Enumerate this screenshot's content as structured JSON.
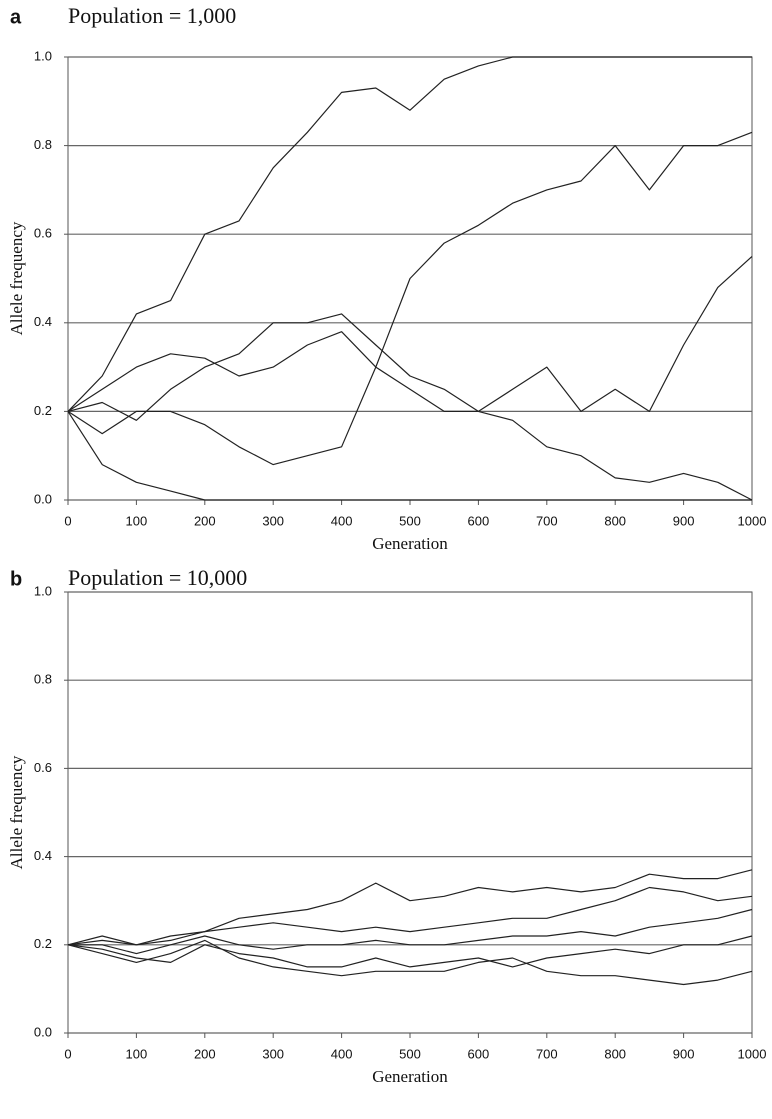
{
  "chart_data": [
    {
      "type": "line",
      "panel_label": "a",
      "title": "Population = 1,000",
      "x_label": "Generation",
      "y_label": "Allele frequency",
      "x": [
        0,
        50,
        100,
        150,
        200,
        250,
        300,
        350,
        400,
        450,
        500,
        550,
        600,
        650,
        700,
        750,
        800,
        850,
        900,
        950,
        1000
      ],
      "xlim": [
        0,
        1000
      ],
      "xticks": [
        0,
        100,
        200,
        300,
        400,
        500,
        600,
        700,
        800,
        900,
        1000
      ],
      "ylim": [
        0,
        1
      ],
      "yticks": [
        {
          "value": 0,
          "label": "0.0"
        },
        {
          "value": 0.2,
          "label": "0.2"
        },
        {
          "value": 0.4,
          "label": "0.4"
        },
        {
          "value": 0.6,
          "label": "0.6"
        },
        {
          "value": 0.8,
          "label": "0.8"
        },
        {
          "value": 1,
          "label": "1.0"
        }
      ],
      "grid": true,
      "series": [
        {
          "color": "#222222",
          "values": [
            0.2,
            0.28,
            0.42,
            0.45,
            0.6,
            0.63,
            0.75,
            0.83,
            0.92,
            0.93,
            0.88,
            0.95,
            0.98,
            1.0,
            1.0,
            1.0,
            1.0,
            1.0,
            1.0,
            1.0,
            1.0
          ]
        },
        {
          "color": "#222222",
          "values": [
            0.2,
            0.15,
            0.2,
            0.2,
            0.17,
            0.12,
            0.08,
            0.1,
            0.12,
            0.3,
            0.5,
            0.58,
            0.62,
            0.67,
            0.7,
            0.72,
            0.8,
            0.7,
            0.8,
            0.8,
            0.83
          ]
        },
        {
          "color": "#222222",
          "values": [
            0.2,
            0.25,
            0.3,
            0.33,
            0.32,
            0.28,
            0.3,
            0.35,
            0.38,
            0.3,
            0.25,
            0.2,
            0.2,
            0.25,
            0.3,
            0.2,
            0.25,
            0.2,
            0.35,
            0.48,
            0.55
          ]
        },
        {
          "color": "#222222",
          "values": [
            0.2,
            0.22,
            0.18,
            0.25,
            0.3,
            0.33,
            0.4,
            0.4,
            0.42,
            0.35,
            0.28,
            0.25,
            0.2,
            0.18,
            0.12,
            0.1,
            0.05,
            0.04,
            0.06,
            0.04,
            0.0
          ]
        },
        {
          "color": "#222222",
          "values": [
            0.2,
            0.08,
            0.04,
            0.02,
            0.0,
            0,
            0,
            0,
            0,
            0,
            0,
            0,
            0,
            0,
            0,
            0,
            0,
            0,
            0,
            0,
            0
          ]
        }
      ]
    },
    {
      "type": "line",
      "panel_label": "b",
      "title": "Population = 10,000",
      "x_label": "Generation",
      "y_label": "Allele frequency",
      "x": [
        0,
        50,
        100,
        150,
        200,
        250,
        300,
        350,
        400,
        450,
        500,
        550,
        600,
        650,
        700,
        750,
        800,
        850,
        900,
        950,
        1000
      ],
      "xlim": [
        0,
        1000
      ],
      "xticks": [
        0,
        100,
        200,
        300,
        400,
        500,
        600,
        700,
        800,
        900,
        1000
      ],
      "ylim": [
        0,
        1
      ],
      "yticks": [
        {
          "value": 0,
          "label": "0.0"
        },
        {
          "value": 0.2,
          "label": "0.2"
        },
        {
          "value": 0.4,
          "label": "0.4"
        },
        {
          "value": 0.6,
          "label": "0.6"
        },
        {
          "value": 0.8,
          "label": "0.8"
        },
        {
          "value": 1,
          "label": "1.0"
        }
      ],
      "grid": true,
      "series": [
        {
          "color": "#222222",
          "values": [
            0.2,
            0.22,
            0.2,
            0.22,
            0.23,
            0.26,
            0.27,
            0.28,
            0.3,
            0.34,
            0.3,
            0.31,
            0.33,
            0.32,
            0.33,
            0.32,
            0.33,
            0.36,
            0.35,
            0.35,
            0.37
          ]
        },
        {
          "color": "#222222",
          "values": [
            0.2,
            0.21,
            0.2,
            0.21,
            0.23,
            0.24,
            0.25,
            0.24,
            0.23,
            0.24,
            0.23,
            0.24,
            0.25,
            0.26,
            0.26,
            0.28,
            0.3,
            0.33,
            0.32,
            0.3,
            0.31
          ]
        },
        {
          "color": "#222222",
          "values": [
            0.2,
            0.2,
            0.18,
            0.2,
            0.22,
            0.2,
            0.19,
            0.2,
            0.2,
            0.21,
            0.2,
            0.2,
            0.21,
            0.22,
            0.22,
            0.23,
            0.22,
            0.24,
            0.25,
            0.26,
            0.28
          ]
        },
        {
          "color": "#222222",
          "values": [
            0.2,
            0.19,
            0.17,
            0.16,
            0.2,
            0.18,
            0.17,
            0.15,
            0.15,
            0.17,
            0.15,
            0.16,
            0.17,
            0.15,
            0.17,
            0.18,
            0.19,
            0.18,
            0.2,
            0.2,
            0.22
          ]
        },
        {
          "color": "#222222",
          "values": [
            0.2,
            0.18,
            0.16,
            0.18,
            0.21,
            0.17,
            0.15,
            0.14,
            0.13,
            0.14,
            0.14,
            0.14,
            0.16,
            0.17,
            0.14,
            0.13,
            0.13,
            0.12,
            0.11,
            0.12,
            0.14
          ]
        }
      ]
    }
  ]
}
